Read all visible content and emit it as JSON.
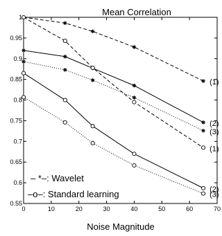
{
  "chart_data": {
    "type": "line",
    "title": "Mean Correlation",
    "xlabel": "Noise Magnitude",
    "ylabel": "",
    "xlim": [
      0,
      70
    ],
    "ylim": [
      0.55,
      1.0
    ],
    "xticks": [
      0,
      10,
      20,
      30,
      40,
      50,
      60,
      70
    ],
    "xtick_labels": [
      "0",
      "10",
      "20",
      "30",
      "40",
      "50",
      "60",
      "70"
    ],
    "yticks": [
      0.55,
      0.6,
      0.65,
      0.7,
      0.75,
      0.8,
      0.85,
      0.9,
      0.95,
      1.0
    ],
    "ytick_labels": [
      "0.55",
      "0.6",
      "0.65",
      "0.7",
      "0.75",
      "0.8",
      "0.85",
      "0.9",
      "0.95",
      "1"
    ],
    "grid": false,
    "legend_position": "bottom-left",
    "legend": [
      {
        "text": "– *–: Wavelet",
        "marker": "star"
      },
      {
        "text": "–o–: Standard learning",
        "marker": "circle"
      }
    ],
    "series": [
      {
        "name": "(1)",
        "marker": "star",
        "dash": "dashed",
        "x": [
          0,
          15,
          25,
          40,
          65
        ],
        "y": [
          1.0,
          0.986,
          0.966,
          0.928,
          0.846
        ]
      },
      {
        "name": "(2)",
        "marker": "star",
        "dash": "solid",
        "x": [
          0,
          15,
          25,
          40,
          65
        ],
        "y": [
          0.92,
          0.905,
          0.877,
          0.835,
          0.746
        ]
      },
      {
        "name": "(3)",
        "marker": "star",
        "dash": "dotted",
        "x": [
          0,
          15,
          25,
          40,
          65
        ],
        "y": [
          0.893,
          0.873,
          0.848,
          0.806,
          0.726
        ]
      },
      {
        "name": "(1)",
        "marker": "circle",
        "dash": "dashed",
        "x": [
          0,
          15,
          25,
          40,
          65
        ],
        "y": [
          1.0,
          0.943,
          0.878,
          0.795,
          0.685
        ]
      },
      {
        "name": "(2)",
        "marker": "circle",
        "dash": "solid",
        "x": [
          0,
          15,
          25,
          40,
          65
        ],
        "y": [
          0.865,
          0.8,
          0.737,
          0.67,
          0.587
        ]
      },
      {
        "name": "(3)",
        "marker": "circle",
        "dash": "dotted",
        "x": [
          0,
          15,
          25,
          40,
          65
        ],
        "y": [
          0.807,
          0.746,
          0.696,
          0.642,
          0.574
        ]
      }
    ]
  }
}
